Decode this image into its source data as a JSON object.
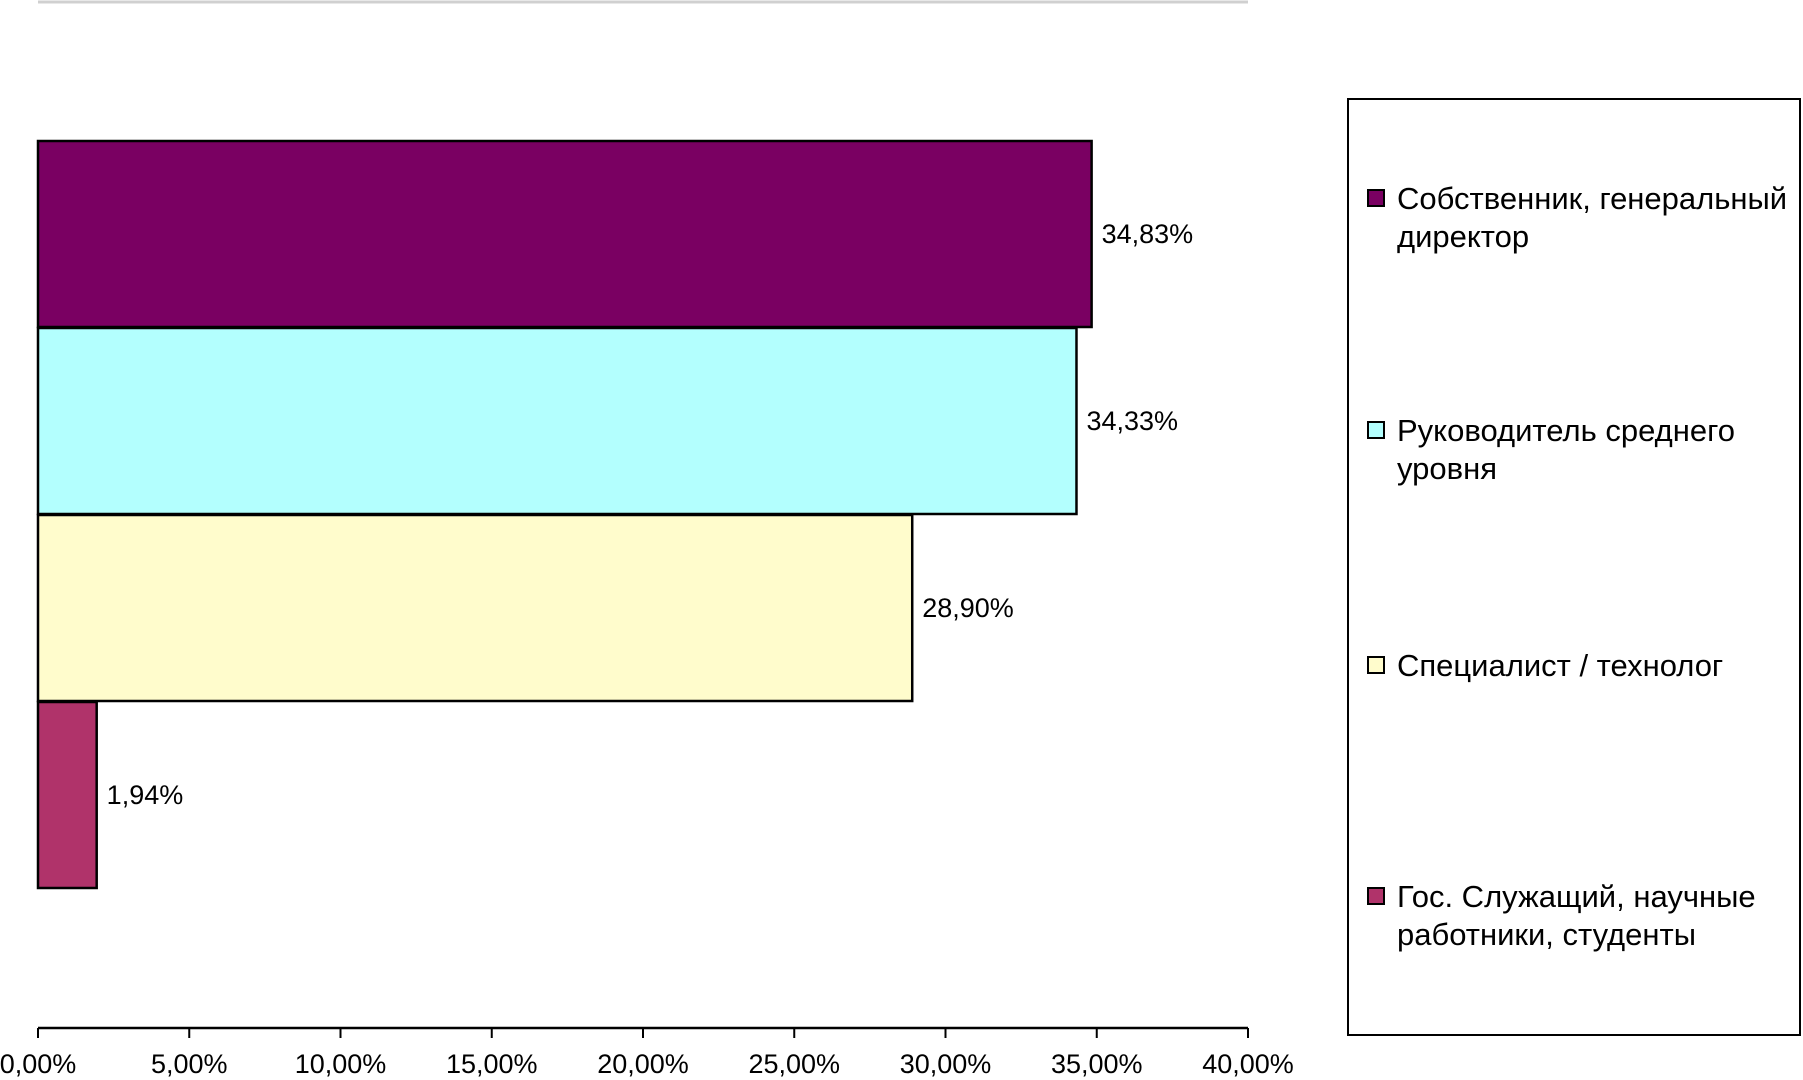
{
  "chart_data": {
    "type": "bar",
    "orientation": "horizontal",
    "categories": [
      "Собственник, генеральный директор",
      "Руководитель среднего уровня",
      "Специалист / технолог",
      "Гос. Служащий, научные работники, студенты"
    ],
    "values": [
      34.83,
      34.33,
      28.9,
      1.94
    ],
    "data_labels": [
      "34,83%",
      "34,33%",
      "28,90%",
      "1,94%"
    ],
    "colors": [
      "#7a0062",
      "#b3fffe",
      "#fffccc",
      "#b0336a"
    ],
    "xlim": [
      0,
      40
    ],
    "x_ticks": [
      0,
      5,
      10,
      15,
      20,
      25,
      30,
      35,
      40
    ],
    "x_tick_labels": [
      "0,00%",
      "5,00%",
      "10,00%",
      "15,00%",
      "20,00%",
      "25,00%",
      "30,00%",
      "35,00%",
      "40,00%"
    ],
    "title": "",
    "xlabel": "",
    "ylabel": "",
    "grid": false,
    "legend": {
      "placement": "right",
      "entries": [
        {
          "label": "Собственник, генеральный директор",
          "color": "#7a0062"
        },
        {
          "label": "Руководитель среднего уровня",
          "color": "#b3fffe"
        },
        {
          "label": "Специалист / технолог",
          "color": "#fffccc"
        },
        {
          "label": "Гос. Служащий, научные работники, студенты",
          "color": "#b0336a"
        }
      ]
    }
  }
}
